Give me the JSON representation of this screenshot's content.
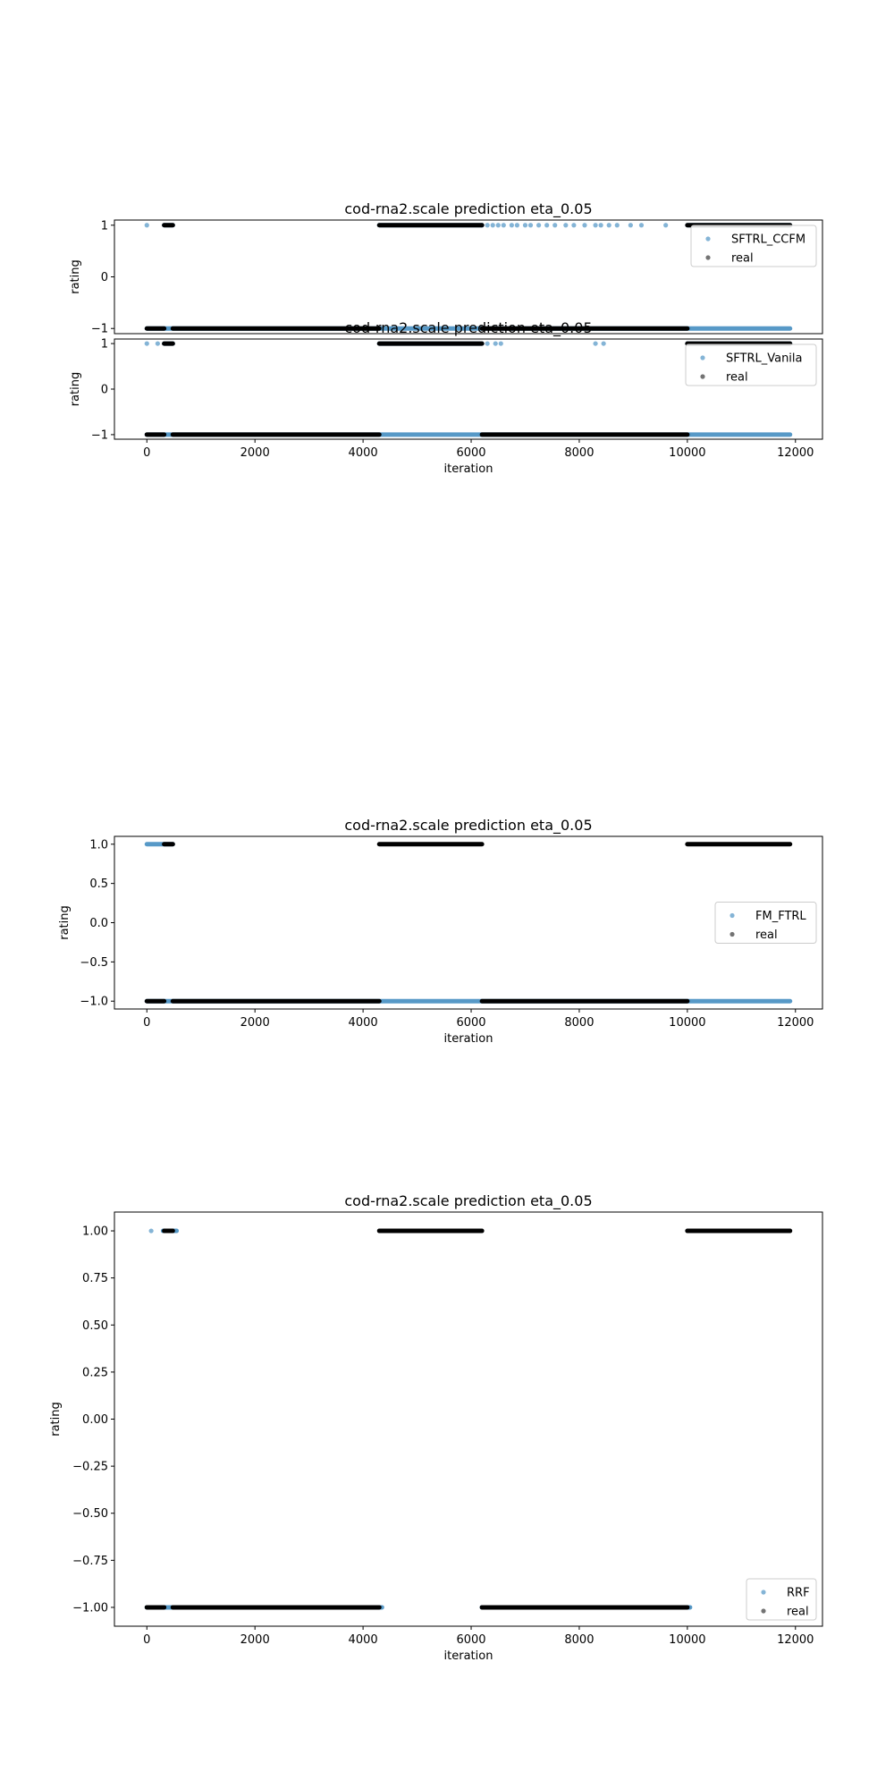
{
  "colors": {
    "prediction": "#1f77b4",
    "real": "#000000",
    "axes": "#000000",
    "legend_border": "#cccccc"
  },
  "chart_data": [
    {
      "type": "scatter",
      "title": "cod-rna2.scale prediction eta_0.05",
      "xlabel": "",
      "ylabel": "rating",
      "xlim": [
        -600,
        12500
      ],
      "ylim": [
        -1.1,
        1.1
      ],
      "xticks": [],
      "yticks": [
        {
          "v": -1,
          "label": "−1"
        },
        {
          "v": 0,
          "label": "0"
        },
        {
          "v": 1,
          "label": "1"
        }
      ],
      "grid": false,
      "legend": {
        "position": "upper-right",
        "entries": [
          "SFTRL_CCFM",
          "real"
        ]
      },
      "series": [
        {
          "name": "SFTRL_CCFM",
          "alpha": 0.45,
          "segments": [
            {
              "y": -1,
              "x": [
                0,
                11900
              ]
            },
            {
              "y": 1,
              "x": [
                4300,
                6200
              ]
            },
            {
              "y": 1,
              "x": [
                10000,
                11900
              ]
            },
            {
              "y": 1,
              "x": [
                320,
                480
              ]
            }
          ],
          "points": [
            {
              "x": 0,
              "y": 1
            },
            {
              "x": 6200,
              "y": 1
            },
            {
              "x": 6300,
              "y": 1
            },
            {
              "x": 6400,
              "y": 1
            },
            {
              "x": 6500,
              "y": 1
            },
            {
              "x": 6600,
              "y": 1
            },
            {
              "x": 6750,
              "y": 1
            },
            {
              "x": 6850,
              "y": 1
            },
            {
              "x": 7000,
              "y": 1
            },
            {
              "x": 7100,
              "y": 1
            },
            {
              "x": 7250,
              "y": 1
            },
            {
              "x": 7400,
              "y": 1
            },
            {
              "x": 7550,
              "y": 1
            },
            {
              "x": 7750,
              "y": 1
            },
            {
              "x": 7900,
              "y": 1
            },
            {
              "x": 8100,
              "y": 1
            },
            {
              "x": 8300,
              "y": 1
            },
            {
              "x": 8400,
              "y": 1
            },
            {
              "x": 8550,
              "y": 1
            },
            {
              "x": 8700,
              "y": 1
            },
            {
              "x": 8950,
              "y": 1
            },
            {
              "x": 9150,
              "y": 1
            },
            {
              "x": 9600,
              "y": 1
            }
          ]
        },
        {
          "name": "real",
          "alpha": 0.55,
          "segments": [
            {
              "y": -1,
              "x": [
                0,
                320
              ]
            },
            {
              "y": -1,
              "x": [
                480,
                4300
              ]
            },
            {
              "y": -1,
              "x": [
                6200,
                10000
              ]
            },
            {
              "y": 1,
              "x": [
                320,
                480
              ]
            },
            {
              "y": 1,
              "x": [
                4300,
                6200
              ]
            },
            {
              "y": 1,
              "x": [
                10000,
                11900
              ]
            }
          ],
          "points": []
        }
      ]
    },
    {
      "type": "scatter",
      "title": "cod-rna2.scale prediction eta_0.05",
      "xlabel": "iteration",
      "ylabel": "rating",
      "xlim": [
        -600,
        12500
      ],
      "ylim": [
        -1.1,
        1.1
      ],
      "xticks": [
        {
          "v": 0,
          "label": "0"
        },
        {
          "v": 2000,
          "label": "2000"
        },
        {
          "v": 4000,
          "label": "4000"
        },
        {
          "v": 6000,
          "label": "6000"
        },
        {
          "v": 8000,
          "label": "8000"
        },
        {
          "v": 10000,
          "label": "10000"
        },
        {
          "v": 12000,
          "label": "12000"
        }
      ],
      "yticks": [
        {
          "v": -1,
          "label": "−1"
        },
        {
          "v": 0,
          "label": "0"
        },
        {
          "v": 1,
          "label": "1"
        }
      ],
      "grid": false,
      "legend": {
        "position": "upper-right",
        "entries": [
          "SFTRL_Vanila",
          "real"
        ]
      },
      "series": [
        {
          "name": "SFTRL_Vanila",
          "alpha": 0.45,
          "segments": [
            {
              "y": -1,
              "x": [
                0,
                11900
              ]
            },
            {
              "y": 1,
              "x": [
                4300,
                6200
              ]
            },
            {
              "y": 1,
              "x": [
                10000,
                11900
              ]
            },
            {
              "y": 1,
              "x": [
                320,
                480
              ]
            }
          ],
          "points": [
            {
              "x": 0,
              "y": 1
            },
            {
              "x": 200,
              "y": 1
            },
            {
              "x": 6300,
              "y": 1
            },
            {
              "x": 6450,
              "y": 1
            },
            {
              "x": 6550,
              "y": 1
            },
            {
              "x": 8300,
              "y": 1
            },
            {
              "x": 8450,
              "y": 1
            }
          ]
        },
        {
          "name": "real",
          "alpha": 0.55,
          "segments": [
            {
              "y": -1,
              "x": [
                0,
                320
              ]
            },
            {
              "y": -1,
              "x": [
                480,
                4300
              ]
            },
            {
              "y": -1,
              "x": [
                6200,
                10000
              ]
            },
            {
              "y": 1,
              "x": [
                320,
                480
              ]
            },
            {
              "y": 1,
              "x": [
                4300,
                6200
              ]
            },
            {
              "y": 1,
              "x": [
                10000,
                11900
              ]
            }
          ],
          "points": []
        }
      ]
    },
    {
      "type": "scatter",
      "title": "cod-rna2.scale prediction eta_0.05",
      "xlabel": "iteration",
      "ylabel": "rating",
      "xlim": [
        -600,
        12500
      ],
      "ylim": [
        -1.1,
        1.1
      ],
      "xticks": [
        {
          "v": 0,
          "label": "0"
        },
        {
          "v": 2000,
          "label": "2000"
        },
        {
          "v": 4000,
          "label": "4000"
        },
        {
          "v": 6000,
          "label": "6000"
        },
        {
          "v": 8000,
          "label": "8000"
        },
        {
          "v": 10000,
          "label": "10000"
        },
        {
          "v": 12000,
          "label": "12000"
        }
      ],
      "yticks": [
        {
          "v": -1,
          "label": "−1.0"
        },
        {
          "v": -0.5,
          "label": "−0.5"
        },
        {
          "v": 0,
          "label": "0.0"
        },
        {
          "v": 0.5,
          "label": "0.5"
        },
        {
          "v": 1,
          "label": "1.0"
        }
      ],
      "grid": false,
      "legend": {
        "position": "center-right",
        "entries": [
          "FM_FTRL",
          "real"
        ]
      },
      "series": [
        {
          "name": "FM_FTRL",
          "alpha": 0.45,
          "segments": [
            {
              "y": -1,
              "x": [
                0,
                11900
              ]
            },
            {
              "y": 1,
              "x": [
                0,
                480
              ]
            }
          ],
          "points": []
        },
        {
          "name": "real",
          "alpha": 0.55,
          "segments": [
            {
              "y": -1,
              "x": [
                0,
                320
              ]
            },
            {
              "y": -1,
              "x": [
                480,
                4300
              ]
            },
            {
              "y": -1,
              "x": [
                6200,
                10000
              ]
            },
            {
              "y": 1,
              "x": [
                320,
                480
              ]
            },
            {
              "y": 1,
              "x": [
                4300,
                6200
              ]
            },
            {
              "y": 1,
              "x": [
                10000,
                11900
              ]
            }
          ],
          "points": []
        }
      ]
    },
    {
      "type": "scatter",
      "title": "cod-rna2.scale prediction eta_0.05",
      "xlabel": "iteration",
      "ylabel": "rating",
      "xlim": [
        -600,
        12500
      ],
      "ylim": [
        -1.1,
        1.1
      ],
      "xticks": [
        {
          "v": 0,
          "label": "0"
        },
        {
          "v": 2000,
          "label": "2000"
        },
        {
          "v": 4000,
          "label": "4000"
        },
        {
          "v": 6000,
          "label": "6000"
        },
        {
          "v": 8000,
          "label": "8000"
        },
        {
          "v": 10000,
          "label": "10000"
        },
        {
          "v": 12000,
          "label": "12000"
        }
      ],
      "yticks": [
        {
          "v": -1,
          "label": "−1.00"
        },
        {
          "v": -0.75,
          "label": "−0.75"
        },
        {
          "v": -0.5,
          "label": "−0.50"
        },
        {
          "v": -0.25,
          "label": "−0.25"
        },
        {
          "v": 0,
          "label": "0.00"
        },
        {
          "v": 0.25,
          "label": "0.25"
        },
        {
          "v": 0.5,
          "label": "0.50"
        },
        {
          "v": 0.75,
          "label": "0.75"
        },
        {
          "v": 1,
          "label": "1.00"
        }
      ],
      "grid": false,
      "legend": {
        "position": "lower-right",
        "entries": [
          "RRF",
          "real"
        ]
      },
      "series": [
        {
          "name": "RRF",
          "alpha": 0.45,
          "segments": [
            {
              "y": -1,
              "x": [
                0,
                4350
              ]
            },
            {
              "y": -1,
              "x": [
                6200,
                10050
              ]
            },
            {
              "y": 1,
              "x": [
                300,
                550
              ]
            }
          ],
          "points": [
            {
              "x": 80,
              "y": 1
            }
          ]
        },
        {
          "name": "real",
          "alpha": 0.55,
          "segments": [
            {
              "y": -1,
              "x": [
                0,
                320
              ]
            },
            {
              "y": -1,
              "x": [
                480,
                4300
              ]
            },
            {
              "y": -1,
              "x": [
                6200,
                10000
              ]
            },
            {
              "y": 1,
              "x": [
                320,
                480
              ]
            },
            {
              "y": 1,
              "x": [
                4300,
                6200
              ]
            },
            {
              "y": 1,
              "x": [
                10000,
                11900
              ]
            }
          ],
          "points": []
        }
      ]
    }
  ]
}
